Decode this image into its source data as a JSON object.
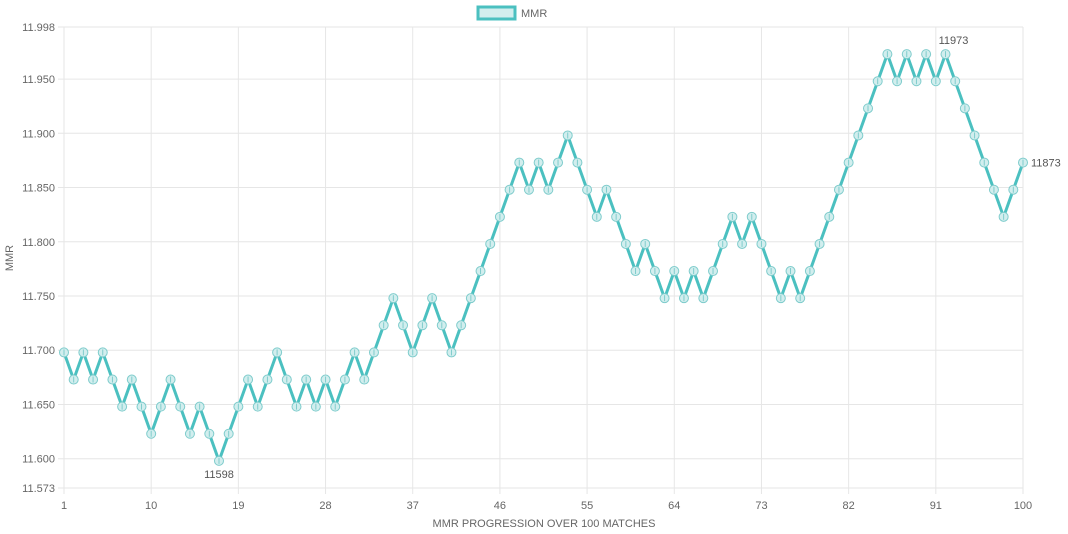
{
  "colors": {
    "line": "#4bc0c0",
    "point_fill": "#d2eeee",
    "grid": "#e6e6e6",
    "text": "#666666"
  },
  "chart_data": {
    "type": "line",
    "legend": {
      "label": "MMR",
      "position": "top"
    },
    "xlabel": "MMR PROGRESSION OVER 100 MATCHES",
    "ylabel": "MMR",
    "xlim": [
      1,
      100
    ],
    "ylim": [
      11573,
      11998
    ],
    "x_ticks": [
      1,
      10,
      19,
      28,
      37,
      46,
      55,
      64,
      73,
      82,
      91,
      100
    ],
    "y_ticks": [
      11573,
      11600,
      11650,
      11700,
      11750,
      11800,
      11850,
      11900,
      11950,
      11998
    ],
    "y_tick_labels": [
      "11.573",
      "11.600",
      "11.650",
      "11.700",
      "11.750",
      "11.800",
      "11.850",
      "11.900",
      "11.950",
      "11.998"
    ],
    "grid": true,
    "series": [
      {
        "name": "MMR",
        "values": [
          11698,
          11673,
          11698,
          11673,
          11698,
          11673,
          11648,
          11673,
          11648,
          11623,
          11648,
          11673,
          11648,
          11623,
          11648,
          11623,
          11598,
          11623,
          11648,
          11673,
          11648,
          11673,
          11698,
          11673,
          11648,
          11673,
          11648,
          11673,
          11648,
          11673,
          11698,
          11673,
          11698,
          11723,
          11748,
          11723,
          11698,
          11723,
          11748,
          11723,
          11698,
          11723,
          11748,
          11773,
          11798,
          11823,
          11848,
          11873,
          11848,
          11873,
          11848,
          11873,
          11898,
          11873,
          11848,
          11823,
          11848,
          11823,
          11798,
          11773,
          11798,
          11773,
          11748,
          11773,
          11748,
          11773,
          11748,
          11773,
          11798,
          11823,
          11798,
          11823,
          11798,
          11773,
          11748,
          11773,
          11748,
          11773,
          11798,
          11823,
          11848,
          11873,
          11898,
          11923,
          11948,
          11973,
          11948,
          11973,
          11948,
          11973,
          11948,
          11973,
          11948,
          11923,
          11898,
          11873,
          11848,
          11823,
          11848,
          11873
        ]
      }
    ],
    "annotations": [
      {
        "x": 17,
        "y": 11598,
        "text": "11598",
        "position": "below"
      },
      {
        "x": 92,
        "y": 11973,
        "text": "11973",
        "position": "above"
      },
      {
        "x": 100,
        "y": 11873,
        "text": "11873",
        "position": "right"
      }
    ]
  }
}
